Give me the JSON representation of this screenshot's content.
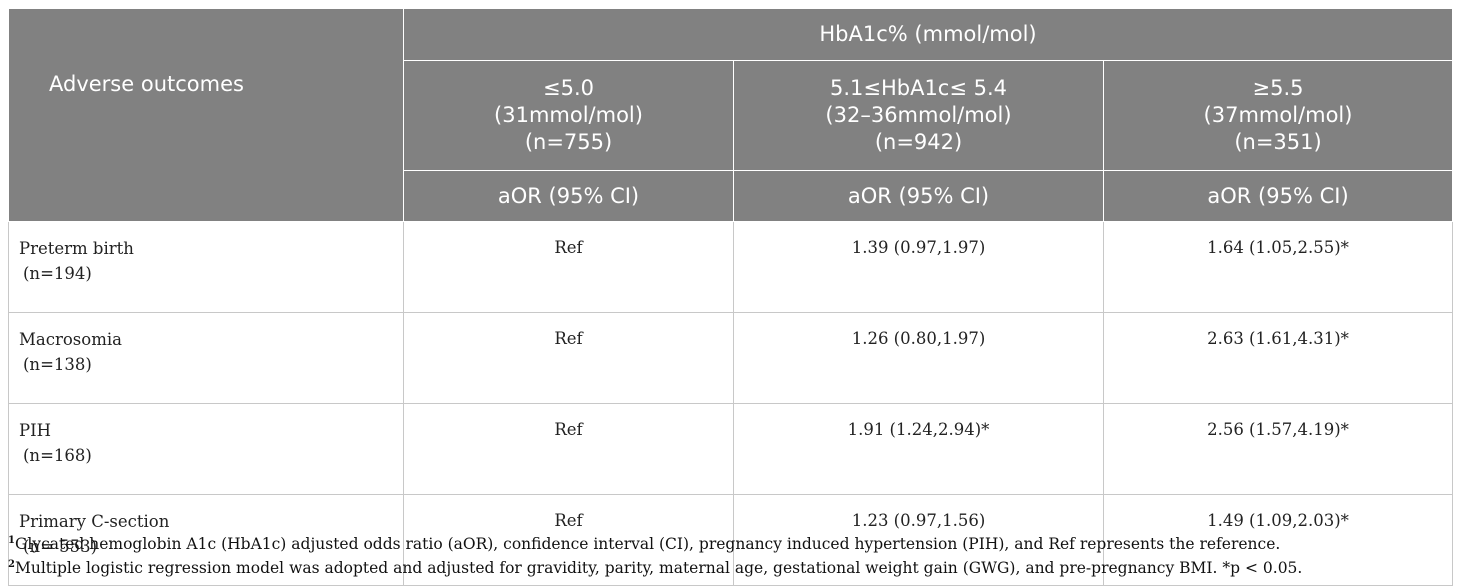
{
  "table": {
    "header": {
      "group_label": "HbA1c% (mmol/mol)",
      "outcome_label": "Adverse outcomes",
      "columns": [
        {
          "line1": "≤5.0",
          "line2": "(31mmol/mol)",
          "line3": "(n=755)",
          "stat": "aOR (95% CI)"
        },
        {
          "line1": "5.1≤HbA1c≤ 5.4",
          "line2": "(32–36mmol/mol)",
          "line3": "(n=942)",
          "stat": "aOR (95% CI)"
        },
        {
          "line1": "≥5.5",
          "line2": "(37mmol/mol)",
          "line3": "(n=351)",
          "stat": "aOR (95% CI)"
        }
      ]
    },
    "rows": [
      {
        "outcome": "Preterm birth",
        "n": "(n=194)",
        "values": [
          "Ref",
          "1.39 (0.97,1.97)",
          "1.64 (1.05,2.55)*"
        ]
      },
      {
        "outcome": "Macrosomia",
        "n": "(n=138)",
        "values": [
          "Ref",
          "1.26 (0.80,1.97)",
          "2.63 (1.61,4.31)*"
        ]
      },
      {
        "outcome": "PIH",
        "n": "(n=168)",
        "values": [
          "Ref",
          "1.91 (1.24,2.94)*",
          "2.56 (1.57,4.19)*"
        ]
      },
      {
        "outcome": "Primary C-section",
        "n": "(n= 553)",
        "values": [
          "Ref",
          "1.23 (0.97,1.56)",
          "1.49 (1.09,2.03)*"
        ]
      }
    ]
  },
  "footnotes": [
    {
      "mark": "1",
      "text": "Glycated hemoglobin A1c (HbA1c) adjusted odds ratio (aOR), confidence interval (CI), pregnancy induced hypertension (PIH), and Ref represents the reference."
    },
    {
      "mark": "2",
      "text": "Multiple logistic regression model was adopted and adjusted for gravidity, parity, maternal age, gestational weight gain (GWG), and pre-pregnancy BMI. *p < 0.05."
    }
  ],
  "colors": {
    "header_bg": "#818181",
    "header_text": "#ffffff",
    "grid": "#c8c8c8"
  }
}
